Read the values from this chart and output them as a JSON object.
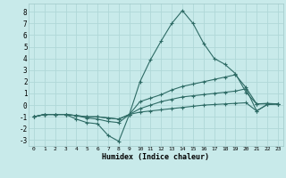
{
  "xlabel": "Humidex (Indice chaleur)",
  "bg_color": "#c8eaea",
  "grid_color": "#b0d8d8",
  "line_color": "#2e6b65",
  "xlim": [
    -0.5,
    23.5
  ],
  "ylim": [
    -3.5,
    8.7
  ],
  "xticks": [
    0,
    1,
    2,
    3,
    4,
    5,
    6,
    7,
    8,
    9,
    10,
    11,
    12,
    13,
    14,
    15,
    16,
    17,
    18,
    19,
    20,
    21,
    22,
    23
  ],
  "yticks": [
    -3,
    -2,
    -1,
    0,
    1,
    2,
    3,
    4,
    5,
    6,
    7,
    8
  ],
  "series": [
    [
      -1.0,
      -0.8,
      -0.8,
      -0.8,
      -1.2,
      -1.5,
      -1.6,
      -2.6,
      -3.1,
      -0.8,
      2.0,
      3.9,
      5.5,
      7.0,
      8.1,
      7.0,
      5.3,
      4.0,
      3.5,
      2.7,
      1.1,
      0.1,
      0.15,
      0.1
    ],
    [
      -1.0,
      -0.8,
      -0.8,
      -0.8,
      -0.9,
      -1.1,
      -1.2,
      -1.4,
      -1.5,
      -0.8,
      0.3,
      0.6,
      0.9,
      1.3,
      1.6,
      1.8,
      2.0,
      2.2,
      2.4,
      2.6,
      1.5,
      0.1,
      0.1,
      0.1
    ],
    [
      -1.0,
      -0.8,
      -0.8,
      -0.8,
      -0.9,
      -1.0,
      -1.0,
      -1.1,
      -1.2,
      -0.8,
      -0.3,
      0.0,
      0.3,
      0.5,
      0.7,
      0.8,
      0.9,
      1.0,
      1.1,
      1.2,
      1.4,
      -0.5,
      0.05,
      0.1
    ],
    [
      -1.0,
      -0.8,
      -0.8,
      -0.8,
      -0.9,
      -1.0,
      -1.0,
      -1.1,
      -1.2,
      -0.8,
      -0.6,
      -0.5,
      -0.4,
      -0.3,
      -0.2,
      -0.1,
      0.0,
      0.05,
      0.1,
      0.15,
      0.2,
      -0.5,
      0.05,
      0.1
    ]
  ]
}
